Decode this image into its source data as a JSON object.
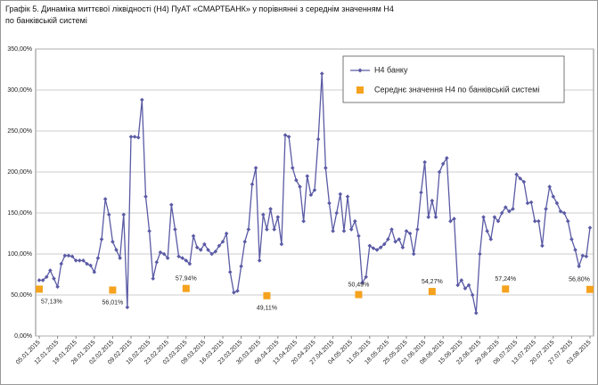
{
  "chart_data": {
    "type": "line",
    "title": "Графік 5. Динаміка миттєвої ліквідності (Н4) ПуАТ «СМАРТБАНК» у порівнянні з середнім значенням Н4 по банківській системі",
    "categories": [
      "05.01.2015",
      null,
      null,
      null,
      null,
      "12.01.2015",
      null,
      null,
      null,
      null,
      "19.01.2015",
      null,
      null,
      null,
      null,
      "26.01.2015",
      null,
      null,
      null,
      null,
      "02.02.2015",
      null,
      null,
      null,
      null,
      "09.02.2015",
      null,
      null,
      null,
      null,
      "16.02.2015",
      null,
      null,
      null,
      null,
      "23.02.2015",
      null,
      null,
      null,
      null,
      "02.03.2015",
      null,
      null,
      null,
      null,
      "09.03.2015",
      null,
      null,
      null,
      null,
      "16.03.2015",
      null,
      null,
      null,
      null,
      "23.03.2015",
      null,
      null,
      null,
      null,
      "30.03.2015",
      null,
      null,
      null,
      null,
      "06.04.2015",
      null,
      null,
      null,
      null,
      "13.04.2015",
      null,
      null,
      null,
      null,
      "20.04.2015",
      null,
      null,
      null,
      null,
      "27.04.2015",
      null,
      null,
      null,
      null,
      "04.05.2015",
      null,
      null,
      null,
      null,
      "11.05.2015",
      null,
      null,
      null,
      null,
      "18.05.2015",
      null,
      null,
      null,
      null,
      "25.05.2015",
      null,
      null,
      null,
      null,
      "01.06.2015",
      null,
      null,
      null,
      null,
      "08.06.2015",
      null,
      null,
      null,
      null,
      "15.06.2015",
      null,
      null,
      null,
      null,
      "22.06.2015",
      null,
      null,
      null,
      null,
      "29.06.2015",
      null,
      null,
      null,
      null,
      "06.07.2015",
      null,
      null,
      null,
      null,
      "13.07.2015",
      null,
      null,
      null,
      null,
      "20.07.2015",
      null,
      null,
      null,
      null,
      "27.07.2015",
      null,
      null,
      null,
      null,
      "03.08.2015"
    ],
    "series": [
      {
        "name": "Н4 банку",
        "color": "#5a5aa5",
        "values": [
          68,
          68,
          72,
          80,
          70,
          60,
          88,
          98,
          98,
          97,
          92,
          92,
          92,
          88,
          86,
          78,
          95,
          118,
          167,
          148,
          115,
          105,
          95,
          148,
          35,
          243,
          243,
          242,
          288,
          170,
          128,
          70,
          90,
          102,
          100,
          95,
          160,
          130,
          97,
          95,
          92,
          88,
          122,
          108,
          105,
          112,
          105,
          100,
          103,
          110,
          115,
          125,
          78,
          53,
          55,
          85,
          115,
          130,
          185,
          205,
          92,
          148,
          130,
          155,
          130,
          145,
          112,
          245,
          243,
          205,
          190,
          182,
          140,
          195,
          172,
          178,
          240,
          320,
          205,
          162,
          128,
          150,
          173,
          128,
          170,
          130,
          140,
          122,
          65,
          72,
          110,
          107,
          105,
          108,
          112,
          118,
          130,
          115,
          118,
          108,
          128,
          125,
          100,
          130,
          175,
          212,
          145,
          165,
          145,
          200,
          210,
          217,
          140,
          143,
          62,
          68,
          58,
          62,
          50,
          28,
          100,
          145,
          128,
          118,
          145,
          140,
          150,
          157,
          152,
          155,
          197,
          192,
          188,
          162,
          163,
          140,
          140,
          110,
          155,
          182,
          170,
          162,
          152,
          150,
          140,
          118,
          105,
          85,
          98,
          97,
          132
        ]
      },
      {
        "name": "Середнє значення Н4 по банківській системі",
        "color": "#f5a21e",
        "values": [
          57.13,
          null,
          null,
          null,
          null,
          null,
          null,
          null,
          null,
          null,
          null,
          null,
          null,
          null,
          null,
          null,
          null,
          null,
          null,
          null,
          56.01,
          null,
          null,
          null,
          null,
          null,
          null,
          null,
          null,
          null,
          null,
          null,
          null,
          null,
          null,
          null,
          null,
          null,
          null,
          null,
          57.94,
          null,
          null,
          null,
          null,
          null,
          null,
          null,
          null,
          null,
          null,
          null,
          null,
          null,
          null,
          null,
          null,
          null,
          null,
          null,
          null,
          null,
          49.11,
          null,
          null,
          null,
          null,
          null,
          null,
          null,
          null,
          null,
          null,
          null,
          null,
          null,
          null,
          null,
          null,
          null,
          null,
          null,
          null,
          null,
          null,
          null,
          null,
          50.49,
          null,
          null,
          null,
          null,
          null,
          null,
          null,
          null,
          null,
          null,
          null,
          null,
          null,
          null,
          null,
          null,
          null,
          null,
          null,
          54.27,
          null,
          null,
          null,
          null,
          null,
          null,
          null,
          null,
          null,
          null,
          null,
          null,
          null,
          null,
          null,
          null,
          null,
          null,
          null,
          57.24,
          null,
          null,
          null,
          null,
          null,
          null,
          null,
          null,
          null,
          null,
          null,
          null,
          null,
          null,
          null,
          null,
          null,
          null,
          null,
          null,
          null,
          null,
          56.8
        ],
        "value_labels": [
          "57,13%",
          null,
          null,
          null,
          null,
          null,
          null,
          null,
          null,
          null,
          null,
          null,
          null,
          null,
          null,
          null,
          null,
          null,
          null,
          null,
          "56,01%",
          null,
          null,
          null,
          null,
          null,
          null,
          null,
          null,
          null,
          null,
          null,
          null,
          null,
          null,
          null,
          null,
          null,
          null,
          null,
          "57,94%",
          null,
          null,
          null,
          null,
          null,
          null,
          null,
          null,
          null,
          null,
          null,
          null,
          null,
          null,
          null,
          null,
          null,
          null,
          null,
          null,
          null,
          "49,11%",
          null,
          null,
          null,
          null,
          null,
          null,
          null,
          null,
          null,
          null,
          null,
          null,
          null,
          null,
          null,
          null,
          null,
          null,
          null,
          null,
          null,
          null,
          null,
          null,
          "50,49%",
          null,
          null,
          null,
          null,
          null,
          null,
          null,
          null,
          null,
          null,
          null,
          null,
          null,
          null,
          null,
          null,
          null,
          null,
          null,
          "54,27%",
          null,
          null,
          null,
          null,
          null,
          null,
          null,
          null,
          null,
          null,
          null,
          null,
          null,
          null,
          null,
          null,
          null,
          null,
          null,
          "57,24%",
          null,
          null,
          null,
          null,
          null,
          null,
          null,
          null,
          null,
          null,
          null,
          null,
          null,
          null,
          null,
          null,
          null,
          null,
          null,
          null,
          null,
          null,
          "56,80%"
        ]
      }
    ],
    "ylim": [
      0,
      350
    ],
    "yticks": [
      {
        "value": 0,
        "label": "0,00%"
      },
      {
        "value": 50,
        "label": "50,00%"
      },
      {
        "value": 100,
        "label": "100,00%"
      },
      {
        "value": 150,
        "label": "150,00%"
      },
      {
        "value": 200,
        "label": "200,00%"
      },
      {
        "value": 250,
        "label": "250,00%"
      },
      {
        "value": 300,
        "label": "300,00%"
      },
      {
        "value": 350,
        "label": "350,00%"
      }
    ],
    "grid": true,
    "legend": "upper right"
  }
}
